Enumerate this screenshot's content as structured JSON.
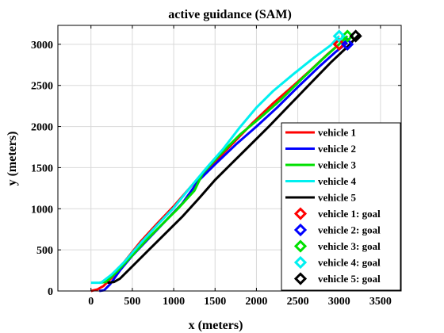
{
  "chart_data": {
    "type": "line",
    "title": "active guidance (SAM)",
    "xlabel": "x (meters)",
    "ylabel": "y (meters)",
    "xlim": [
      -400,
      3750
    ],
    "ylim": [
      0,
      3230
    ],
    "xticks": [
      0,
      500,
      1000,
      1500,
      2000,
      2500,
      3000,
      3500
    ],
    "yticks": [
      0,
      500,
      1000,
      1500,
      2000,
      2500,
      3000
    ],
    "xtick_labels": [
      "0",
      "500",
      "1000",
      "1500",
      "2000",
      "2500",
      "3000",
      "3500"
    ],
    "ytick_labels": [
      "0",
      "500",
      "1000",
      "1500",
      "2000",
      "2500",
      "3000"
    ],
    "grid": true,
    "legend_position": "right",
    "series": [
      {
        "name": "vehicle 1",
        "color": "#ff0000",
        "x": [
          0,
          80,
          150,
          250,
          400,
          600,
          800,
          1000,
          1200,
          1450,
          1700,
          1950,
          2200,
          2450,
          2650,
          2850,
          3000
        ],
        "y": [
          0,
          20,
          60,
          160,
          350,
          600,
          820,
          1030,
          1260,
          1520,
          1780,
          2040,
          2280,
          2500,
          2680,
          2870,
          3000
        ]
      },
      {
        "name": "vehicle 2",
        "color": "#0000ff",
        "x": [
          100,
          160,
          230,
          350,
          500,
          700,
          900,
          1100,
          1300,
          1500,
          1750,
          2000,
          2250,
          2500,
          2750,
          2950,
          3100
        ],
        "y": [
          0,
          10,
          80,
          250,
          430,
          640,
          850,
          1060,
          1340,
          1540,
          1780,
          2000,
          2230,
          2480,
          2720,
          2900,
          3020
        ]
      },
      {
        "name": "vehicle 3",
        "color": "#00e000",
        "x": [
          100,
          180,
          300,
          450,
          650,
          850,
          1050,
          1250,
          1350,
          1550,
          1800,
          2050,
          2300,
          2550,
          2800,
          3000,
          3100
        ],
        "y": [
          100,
          110,
          220,
          380,
          600,
          800,
          1000,
          1220,
          1430,
          1650,
          1900,
          2110,
          2330,
          2580,
          2820,
          3000,
          3100
        ]
      },
      {
        "name": "vehicle 4",
        "color": "#00f0f0",
        "x": [
          0,
          120,
          250,
          400,
          600,
          800,
          1000,
          1200,
          1400,
          1600,
          1800,
          2000,
          2200,
          2450,
          2700,
          2900,
          3000
        ],
        "y": [
          100,
          100,
          200,
          350,
          580,
          800,
          1010,
          1260,
          1500,
          1730,
          1990,
          2230,
          2430,
          2640,
          2840,
          2990,
          3100
        ]
      },
      {
        "name": "vehicle 5",
        "color": "#000000",
        "x": [
          200,
          280,
          350,
          500,
          700,
          900,
          1100,
          1300,
          1500,
          1700,
          1900,
          2150,
          2400,
          2650,
          2900,
          3100,
          3250
        ],
        "y": [
          100,
          110,
          150,
          300,
          500,
          700,
          900,
          1120,
          1350,
          1550,
          1750,
          2000,
          2260,
          2520,
          2780,
          2970,
          3130
        ]
      }
    ],
    "goals": [
      {
        "name": "vehicle 1: goal",
        "color": "#ff0000",
        "x": 3000,
        "y": 3000
      },
      {
        "name": "vehicle 2: goal",
        "color": "#0000ff",
        "x": 3100,
        "y": 3000
      },
      {
        "name": "vehicle 3: goal",
        "color": "#00e000",
        "x": 3100,
        "y": 3100
      },
      {
        "name": "vehicle 4: goal",
        "color": "#00f0f0",
        "x": 3000,
        "y": 3100
      },
      {
        "name": "vehicle 5: goal",
        "color": "#000000",
        "x": 3200,
        "y": 3100
      }
    ]
  }
}
